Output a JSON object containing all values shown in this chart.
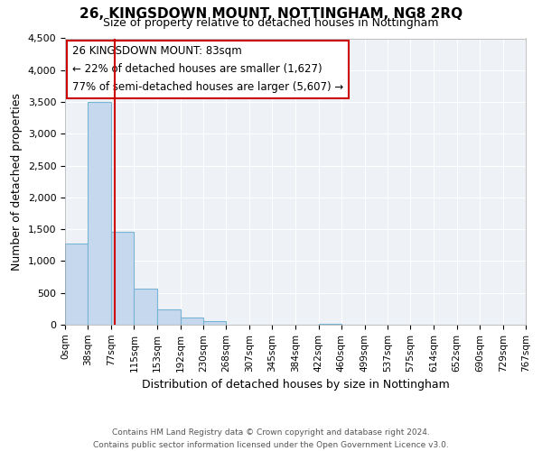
{
  "title": "26, KINGSDOWN MOUNT, NOTTINGHAM, NG8 2RQ",
  "subtitle": "Size of property relative to detached houses in Nottingham",
  "xlabel": "Distribution of detached houses by size in Nottingham",
  "ylabel": "Number of detached properties",
  "bin_edges": [
    0,
    38,
    77,
    115,
    153,
    192,
    230,
    268,
    307,
    345,
    384,
    422,
    460,
    499,
    537,
    575,
    614,
    652,
    690,
    729,
    767
  ],
  "bin_labels": [
    "0sqm",
    "38sqm",
    "77sqm",
    "115sqm",
    "153sqm",
    "192sqm",
    "230sqm",
    "268sqm",
    "307sqm",
    "345sqm",
    "384sqm",
    "422sqm",
    "460sqm",
    "499sqm",
    "537sqm",
    "575sqm",
    "614sqm",
    "652sqm",
    "690sqm",
    "729sqm",
    "767sqm"
  ],
  "counts": [
    1280,
    3500,
    1460,
    570,
    240,
    110,
    60,
    0,
    0,
    0,
    0,
    20,
    0,
    0,
    0,
    0,
    0,
    0,
    0,
    0
  ],
  "bar_color": "#c5d8ed",
  "bar_edge_color": "#7ab4d4",
  "vline_color": "#cc0000",
  "vline_x": 83,
  "ylim": [
    0,
    4500
  ],
  "yticks": [
    0,
    500,
    1000,
    1500,
    2000,
    2500,
    3000,
    3500,
    4000,
    4500
  ],
  "annotation_title": "26 KINGSDOWN MOUNT: 83sqm",
  "annotation_line1": "← 22% of detached houses are smaller (1,627)",
  "annotation_line2": "77% of semi-detached houses are larger (5,607) →",
  "annotation_box_color": "#ffffff",
  "annotation_box_edge": "#cc0000",
  "footer1": "Contains HM Land Registry data © Crown copyright and database right 2024.",
  "footer2": "Contains public sector information licensed under the Open Government Licence v3.0.",
  "background_color": "#ffffff",
  "plot_bg_color": "#eef2f7",
  "grid_color": "#ffffff"
}
